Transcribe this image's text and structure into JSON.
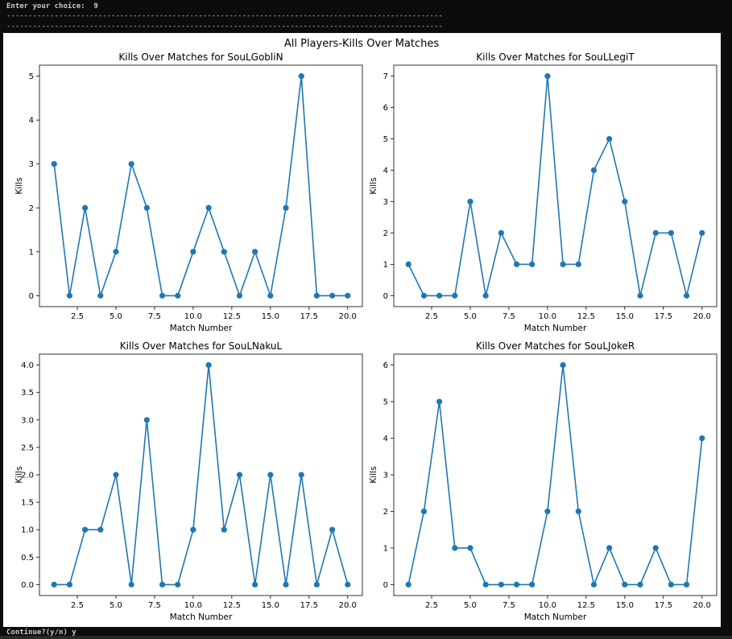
{
  "terminal": {
    "prompt_top": "Enter your choice:  9",
    "separator": "----------------------------------------------------------------------------------------------------",
    "prompt_bottom": "Continue?(y/n) y"
  },
  "figure": {
    "suptitle": "All Players-Kills Over Matches",
    "line_color": "#1f77b4"
  },
  "chart_data": [
    {
      "type": "line",
      "title": "Kills Over Matches for SouLGobliN",
      "xlabel": "Match Number",
      "ylabel": "Kills",
      "x": [
        1,
        2,
        3,
        4,
        5,
        6,
        7,
        8,
        9,
        10,
        11,
        12,
        13,
        14,
        15,
        16,
        17,
        18,
        19,
        20
      ],
      "y": [
        3,
        0,
        2,
        0,
        1,
        3,
        2,
        0,
        0,
        1,
        2,
        1,
        0,
        1,
        0,
        2,
        5,
        0,
        0,
        0
      ],
      "xlim": [
        0.05,
        20.95
      ],
      "ylim": [
        -0.25,
        5.25
      ],
      "xticks": [
        2.5,
        5.0,
        7.5,
        10.0,
        12.5,
        15.0,
        17.5,
        20.0
      ],
      "xtick_labels": [
        "2.5",
        "5.0",
        "7.5",
        "10.0",
        "12.5",
        "15.0",
        "17.5",
        "20.0"
      ],
      "yticks": [
        0,
        1,
        2,
        3,
        4,
        5
      ],
      "ytick_labels": [
        "0",
        "1",
        "2",
        "3",
        "4",
        "5"
      ],
      "marker": "circle",
      "grid": false
    },
    {
      "type": "line",
      "title": "Kills Over Matches for SouLLegiT",
      "xlabel": "Match Number",
      "ylabel": "Kills",
      "x": [
        1,
        2,
        3,
        4,
        5,
        6,
        7,
        8,
        9,
        10,
        11,
        12,
        13,
        14,
        15,
        16,
        17,
        18,
        19,
        20
      ],
      "y": [
        1,
        0,
        0,
        0,
        3,
        0,
        2,
        1,
        1,
        7,
        1,
        1,
        4,
        5,
        3,
        0,
        2,
        2,
        0,
        2
      ],
      "xlim": [
        0.05,
        20.95
      ],
      "ylim": [
        -0.35,
        7.35
      ],
      "xticks": [
        2.5,
        5.0,
        7.5,
        10.0,
        12.5,
        15.0,
        17.5,
        20.0
      ],
      "xtick_labels": [
        "2.5",
        "5.0",
        "7.5",
        "10.0",
        "12.5",
        "15.0",
        "17.5",
        "20.0"
      ],
      "yticks": [
        0,
        1,
        2,
        3,
        4,
        5,
        6,
        7
      ],
      "ytick_labels": [
        "0",
        "1",
        "2",
        "3",
        "4",
        "5",
        "6",
        "7"
      ],
      "marker": "circle",
      "grid": false
    },
    {
      "type": "line",
      "title": "Kills Over Matches for SouLNakuL",
      "xlabel": "Match Number",
      "ylabel": "Kills",
      "x": [
        1,
        2,
        3,
        4,
        5,
        6,
        7,
        8,
        9,
        10,
        11,
        12,
        13,
        14,
        15,
        16,
        17,
        18,
        19,
        20
      ],
      "y": [
        0,
        0,
        1,
        1,
        2,
        0,
        3,
        0,
        0,
        1,
        4,
        1,
        2,
        0,
        2,
        0,
        2,
        0,
        1,
        0
      ],
      "xlim": [
        0.05,
        20.95
      ],
      "ylim": [
        -0.2,
        4.2
      ],
      "xticks": [
        2.5,
        5.0,
        7.5,
        10.0,
        12.5,
        15.0,
        17.5,
        20.0
      ],
      "xtick_labels": [
        "2.5",
        "5.0",
        "7.5",
        "10.0",
        "12.5",
        "15.0",
        "17.5",
        "20.0"
      ],
      "yticks": [
        0,
        0.5,
        1.0,
        1.5,
        2.0,
        2.5,
        3.0,
        3.5,
        4.0
      ],
      "ytick_labels": [
        "0.0",
        "0.5",
        "1.0",
        "1.5",
        "2.0",
        "2.5",
        "3.0",
        "3.5",
        "4.0"
      ],
      "marker": "circle",
      "grid": false
    },
    {
      "type": "line",
      "title": "Kills Over Matches for SouLJokeR",
      "xlabel": "Match Number",
      "ylabel": "Kills",
      "x": [
        1,
        2,
        3,
        4,
        5,
        6,
        7,
        8,
        9,
        10,
        11,
        12,
        13,
        14,
        15,
        16,
        17,
        18,
        19,
        20
      ],
      "y": [
        0,
        2,
        5,
        1,
        1,
        0,
        0,
        0,
        0,
        2,
        6,
        2,
        0,
        1,
        0,
        0,
        1,
        0,
        0,
        4
      ],
      "xlim": [
        0.05,
        20.95
      ],
      "ylim": [
        -0.3,
        6.3
      ],
      "xticks": [
        2.5,
        5.0,
        7.5,
        10.0,
        12.5,
        15.0,
        17.5,
        20.0
      ],
      "xtick_labels": [
        "2.5",
        "5.0",
        "7.5",
        "10.0",
        "12.5",
        "15.0",
        "17.5",
        "20.0"
      ],
      "yticks": [
        0,
        1,
        2,
        3,
        4,
        5,
        6
      ],
      "ytick_labels": [
        "0",
        "1",
        "2",
        "3",
        "4",
        "5",
        "6"
      ],
      "marker": "circle",
      "grid": false
    }
  ]
}
